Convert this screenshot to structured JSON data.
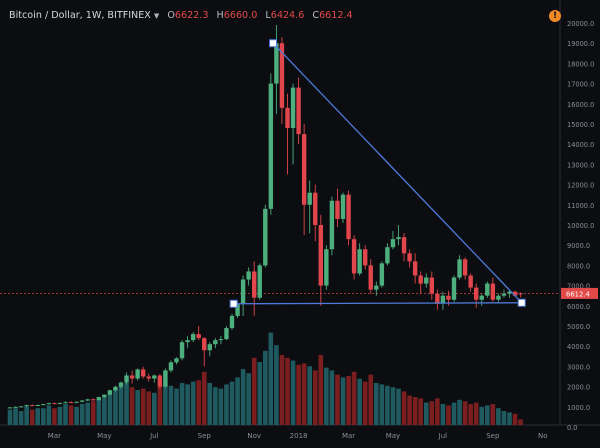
{
  "header": {
    "symbol": "Bitcoin / Dollar, 1W, BITFINEX",
    "open_label": "O",
    "open_value": "6622.3",
    "high_label": "H",
    "high_value": "6660.0",
    "low_label": "L",
    "low_value": "6424.6",
    "close_label": "C",
    "close_value": "6612.4",
    "alert_icon": "!"
  },
  "colors": {
    "background": "#0c0d10",
    "up": "#4caf7d",
    "down": "#e0464c",
    "vol_up": "#1f5a60",
    "vol_down": "#7a1e20",
    "trendline": "#4d79d8",
    "last_price": "#e24a4a"
  },
  "chart_data": {
    "type": "candlestick",
    "xlabel": "",
    "ylabel": "",
    "y_ticks": [
      0,
      1000,
      2000,
      3000,
      4000,
      5000,
      6000,
      7000,
      8000,
      9000,
      10000,
      11000,
      12000,
      13000,
      14000,
      15000,
      16000,
      17000,
      18000,
      19000,
      20000
    ],
    "y_tick_labels": [
      "0.0",
      "1000.0",
      "2000.0",
      "3000.0",
      "4000.0",
      "5000.0",
      "6000.0",
      "7000.0",
      "8000.0",
      "9000.0",
      "10000.0",
      "11000.0",
      "12000.0",
      "13000.0",
      "14000.0",
      "15000.0",
      "16000.0",
      "17000.0",
      "18000.0",
      "19000.0",
      "20000.0"
    ],
    "x_ticks": [
      {
        "label": "Mar",
        "week": 8
      },
      {
        "label": "May",
        "week": 17
      },
      {
        "label": "Jul",
        "week": 26
      },
      {
        "label": "Sep",
        "week": 35
      },
      {
        "label": "Nov",
        "week": 44
      },
      {
        "label": "2018",
        "week": 52
      },
      {
        "label": "Mar",
        "week": 61
      },
      {
        "label": "May",
        "week": 69
      },
      {
        "label": "Jul",
        "week": 78
      },
      {
        "label": "Sep",
        "week": 87
      },
      {
        "label": "No",
        "week": 96
      }
    ],
    "last_price": 6612.4,
    "last_price_label": "6612.4",
    "trendlines": [
      {
        "from": {
          "week": 47.4,
          "price": 19000
        },
        "to": {
          "week": 92.2,
          "price": 6150
        }
      },
      {
        "from": {
          "week": 40.3,
          "price": 6100
        },
        "to": {
          "week": 92.2,
          "price": 6150
        }
      }
    ],
    "trendline_handles": [
      {
        "week": 47.4,
        "price": 19000
      },
      {
        "week": 40.3,
        "price": 6100
      },
      {
        "week": 92.2,
        "price": 6150
      }
    ],
    "candles": [
      [
        960,
        990,
        930,
        970,
        1.1
      ],
      [
        970,
        1010,
        940,
        1000,
        1.2
      ],
      [
        1000,
        1040,
        980,
        1020,
        1.0
      ],
      [
        1020,
        1100,
        1000,
        1080,
        1.3
      ],
      [
        1080,
        1120,
        1040,
        1060,
        1.1
      ],
      [
        1060,
        1110,
        1030,
        1090,
        1.2
      ],
      [
        1090,
        1150,
        1070,
        1130,
        1.2
      ],
      [
        1130,
        1200,
        1110,
        1180,
        1.4
      ],
      [
        1180,
        1220,
        1140,
        1160,
        1.2
      ],
      [
        1160,
        1210,
        1120,
        1190,
        1.3
      ],
      [
        1190,
        1260,
        1170,
        1230,
        1.5
      ],
      [
        1230,
        1280,
        1180,
        1200,
        1.4
      ],
      [
        1200,
        1260,
        1170,
        1250,
        1.3
      ],
      [
        1250,
        1330,
        1220,
        1310,
        1.5
      ],
      [
        1310,
        1390,
        1280,
        1370,
        1.6
      ],
      [
        1370,
        1420,
        1300,
        1330,
        1.7
      ],
      [
        1330,
        1500,
        1310,
        1480,
        1.8
      ],
      [
        1480,
        1620,
        1450,
        1600,
        2.0
      ],
      [
        1600,
        1850,
        1560,
        1820,
        2.2
      ],
      [
        1820,
        2050,
        1760,
        1990,
        2.6
      ],
      [
        1990,
        2250,
        1900,
        2200,
        2.8
      ],
      [
        2200,
        2700,
        2100,
        2550,
        3.0
      ],
      [
        2550,
        2800,
        2150,
        2400,
        2.7
      ],
      [
        2400,
        2900,
        2300,
        2850,
        2.5
      ],
      [
        2850,
        2980,
        2400,
        2500,
        2.6
      ],
      [
        2500,
        2650,
        2250,
        2400,
        2.4
      ],
      [
        2400,
        2600,
        2200,
        2550,
        2.3
      ],
      [
        2550,
        2620,
        1900,
        2000,
        2.9
      ],
      [
        2000,
        2900,
        1950,
        2800,
        3.1
      ],
      [
        2800,
        3300,
        2700,
        3200,
        2.8
      ],
      [
        3200,
        3450,
        3100,
        3400,
        2.6
      ],
      [
        3400,
        4300,
        3300,
        4200,
        3.0
      ],
      [
        4200,
        4500,
        3900,
        4300,
        2.9
      ],
      [
        4300,
        4700,
        4200,
        4600,
        3.1
      ],
      [
        4600,
        5000,
        4300,
        4400,
        3.2
      ],
      [
        4400,
        4450,
        3000,
        3800,
        3.8
      ],
      [
        3800,
        4200,
        3500,
        4100,
        3.0
      ],
      [
        4100,
        4400,
        3900,
        4300,
        2.7
      ],
      [
        4300,
        4500,
        4100,
        4350,
        2.6
      ],
      [
        4350,
        5000,
        4300,
        4900,
        2.9
      ],
      [
        4900,
        5600,
        4800,
        5500,
        3.1
      ],
      [
        5500,
        6200,
        5400,
        6100,
        3.4
      ],
      [
        6100,
        7500,
        5500,
        7300,
        4.0
      ],
      [
        7300,
        7900,
        7000,
        7700,
        3.7
      ],
      [
        7700,
        8200,
        5500,
        6400,
        4.8
      ],
      [
        6400,
        8100,
        6300,
        8000,
        4.5
      ],
      [
        8000,
        11000,
        7900,
        10800,
        5.3
      ],
      [
        10800,
        17500,
        10500,
        17000,
        6.6
      ],
      [
        17000,
        19900,
        15500,
        19000,
        5.7
      ],
      [
        19000,
        19300,
        15000,
        15800,
        5.0
      ],
      [
        15800,
        16500,
        12500,
        14800,
        4.8
      ],
      [
        14800,
        17000,
        13000,
        16800,
        4.6
      ],
      [
        16800,
        17300,
        14000,
        14500,
        4.3
      ],
      [
        14500,
        15000,
        9500,
        11000,
        4.4
      ],
      [
        11000,
        12200,
        9600,
        11600,
        4.2
      ],
      [
        11600,
        12000,
        9200,
        10000,
        3.9
      ],
      [
        10000,
        10500,
        6000,
        7000,
        5.0
      ],
      [
        7000,
        9000,
        6800,
        8800,
        4.1
      ],
      [
        8800,
        11400,
        8500,
        11200,
        3.9
      ],
      [
        11200,
        11800,
        9900,
        10300,
        3.6
      ],
      [
        10300,
        11600,
        10100,
        11500,
        3.4
      ],
      [
        11500,
        11700,
        9000,
        9300,
        3.5
      ],
      [
        9300,
        9500,
        7300,
        7600,
        3.8
      ],
      [
        7600,
        9100,
        7500,
        8800,
        3.3
      ],
      [
        8800,
        9000,
        7800,
        8000,
        3.1
      ],
      [
        8000,
        8300,
        6600,
        6800,
        3.6
      ],
      [
        6800,
        7200,
        6500,
        7000,
        3.0
      ],
      [
        7000,
        8200,
        6900,
        8100,
        2.9
      ],
      [
        8100,
        9100,
        8000,
        8900,
        2.8
      ],
      [
        8900,
        9700,
        8800,
        9300,
        2.7
      ],
      [
        9300,
        10000,
        9000,
        9400,
        2.6
      ],
      [
        9400,
        9600,
        8200,
        8600,
        2.4
      ],
      [
        8600,
        8800,
        7900,
        8200,
        2.1
      ],
      [
        8200,
        8600,
        7100,
        7500,
        2.0
      ],
      [
        7500,
        7700,
        6600,
        7100,
        1.9
      ],
      [
        7100,
        7600,
        6900,
        7400,
        1.6
      ],
      [
        7400,
        7700,
        6300,
        6600,
        1.7
      ],
      [
        6600,
        6800,
        5800,
        6100,
        1.9
      ],
      [
        6100,
        6700,
        5800,
        6500,
        1.5
      ],
      [
        6500,
        6750,
        6000,
        6300,
        1.4
      ],
      [
        6300,
        7500,
        6200,
        7400,
        1.6
      ],
      [
        7400,
        8500,
        7300,
        8300,
        1.8
      ],
      [
        8300,
        8400,
        7300,
        7500,
        1.7
      ],
      [
        7500,
        7600,
        6700,
        6900,
        1.5
      ],
      [
        6900,
        7100,
        5900,
        6300,
        1.6
      ],
      [
        6300,
        6600,
        6000,
        6500,
        1.3
      ],
      [
        6500,
        7200,
        6400,
        7100,
        1.4
      ],
      [
        7100,
        7400,
        6200,
        6300,
        1.5
      ],
      [
        6300,
        6600,
        6200,
        6500,
        1.2
      ],
      [
        6500,
        6800,
        6400,
        6600,
        1.0
      ],
      [
        6600,
        6750,
        6400,
        6700,
        0.9
      ],
      [
        6700,
        6750,
        6450,
        6500,
        0.8
      ],
      [
        6622.3,
        6660,
        6424.6,
        6612.4,
        0.4
      ]
    ],
    "grid": false,
    "legend": "top-left"
  }
}
